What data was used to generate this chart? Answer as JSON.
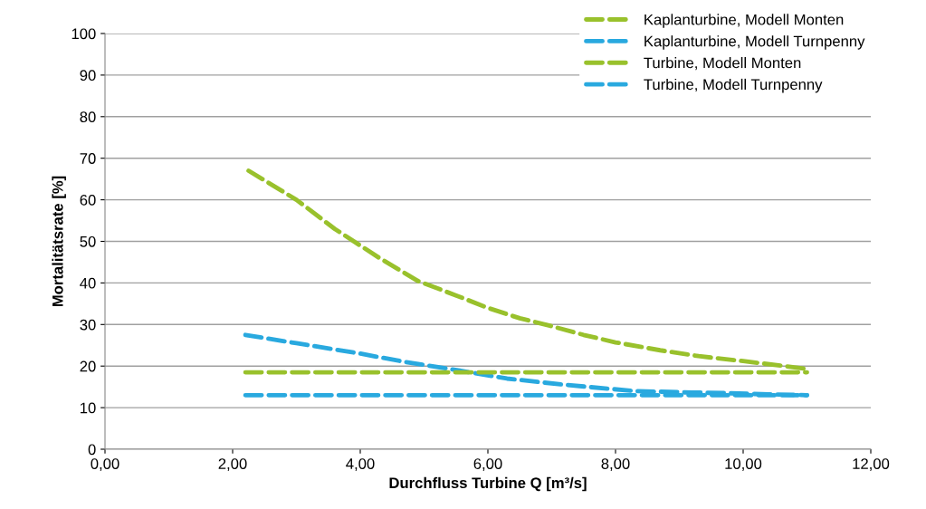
{
  "chart_data": {
    "type": "line",
    "xlabel": "Durchfluss Turbine Q [m³/s]",
    "ylabel": "Mortalitätsrate [%]",
    "xlim": [
      0,
      12
    ],
    "xticks": [
      {
        "value": 0,
        "label": "0,00"
      },
      {
        "value": 2,
        "label": "2,00"
      },
      {
        "value": 4,
        "label": "4,00"
      },
      {
        "value": 6,
        "label": "6,00"
      },
      {
        "value": 8,
        "label": "8,00"
      },
      {
        "value": 10,
        "label": "10,00"
      },
      {
        "value": 12,
        "label": "12,00"
      }
    ],
    "ylim": [
      0,
      100
    ],
    "yticks": [
      0,
      10,
      20,
      30,
      40,
      50,
      60,
      70,
      80,
      90,
      100
    ],
    "grid": "y",
    "legend": "top right",
    "line_style": "dashed",
    "marker": "none",
    "series": [
      {
        "name": "Kaplanturbine, Modell Monten",
        "color": "#99c12c",
        "x": [
          2.25,
          3.0,
          3.6,
          4.3,
          4.9,
          5.5,
          6.0,
          6.5,
          6.9,
          7.5,
          8.0,
          8.7,
          9.3,
          10.0,
          10.6,
          11.0
        ],
        "values": [
          67,
          60,
          53,
          46,
          40.5,
          37,
          34,
          31.5,
          30,
          27.5,
          25.7,
          23.8,
          22.4,
          21.2,
          20.1,
          19.3
        ]
      },
      {
        "name": "Kaplanturbine, Modell Turnpenny",
        "color": "#29a9df",
        "x": [
          2.2,
          3.0,
          4.0,
          4.7,
          5.2,
          5.8,
          6.3,
          7.2,
          8.3,
          9.0,
          9.7,
          10.4,
          11.0
        ],
        "values": [
          27.5,
          25.5,
          23,
          21,
          19.8,
          18.3,
          17,
          15.5,
          14,
          13.7,
          13.5,
          13.2,
          13
        ]
      },
      {
        "name": "Turbine, Modell Monten",
        "color": "#99c12c",
        "x": [
          2.2,
          11.0
        ],
        "values": [
          18.5,
          18.5
        ]
      },
      {
        "name": "Turbine, Modell Turnpenny",
        "color": "#29a9df",
        "x": [
          2.2,
          11.0
        ],
        "values": [
          13,
          13
        ]
      }
    ]
  }
}
